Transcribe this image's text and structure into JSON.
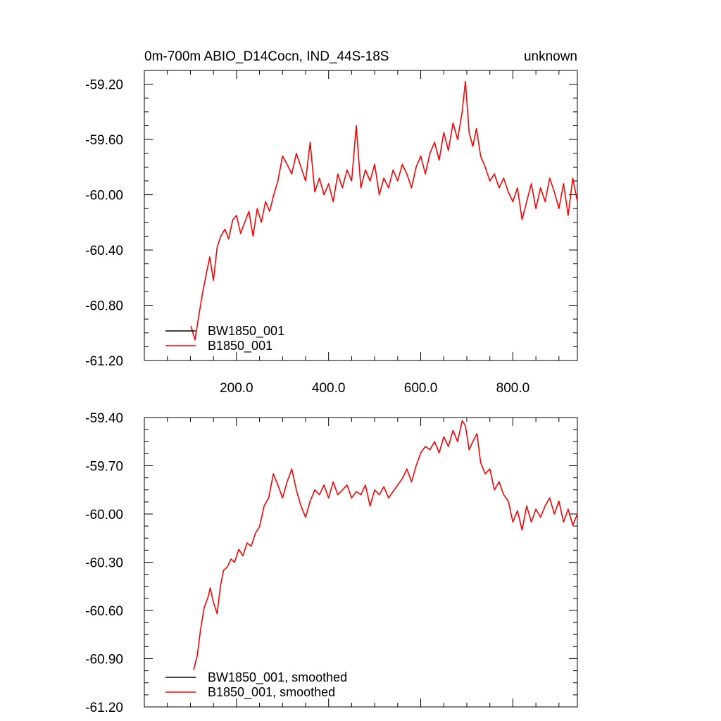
{
  "chart_data": [
    {
      "type": "line",
      "title": "0m-700m ABIO_D14Cocn, IND_44S-18S",
      "title_right": "unknown",
      "xlabel": "",
      "ylabel": "",
      "xlim": [
        0,
        940
      ],
      "ylim": [
        -61.2,
        -59.1
      ],
      "x_ticks": [
        200,
        400,
        600,
        800
      ],
      "x_tick_labels": [
        "200.0",
        "400.0",
        "600.0",
        "800.0"
      ],
      "y_ticks": [
        -59.2,
        -59.6,
        -60.0,
        -60.4,
        -60.8,
        -61.2
      ],
      "y_tick_labels": [
        "-59.20",
        "-59.60",
        "-60.00",
        "-60.40",
        "-60.80",
        "-61.20"
      ],
      "legend_position": "bottom-left",
      "grid": false,
      "series": [
        {
          "name": "BW1850_001",
          "color": "#000000",
          "x": [],
          "y": []
        },
        {
          "name": "B1850_001",
          "color": "#ff0000",
          "x": [
            101,
            110,
            118,
            126,
            134,
            142,
            150,
            158,
            166,
            175,
            183,
            192,
            200,
            209,
            218,
            227,
            236,
            245,
            254,
            263,
            272,
            281,
            290,
            300,
            310,
            320,
            330,
            340,
            350,
            360,
            370,
            380,
            390,
            400,
            410,
            420,
            430,
            440,
            450,
            460,
            470,
            480,
            490,
            500,
            510,
            520,
            530,
            540,
            550,
            560,
            570,
            580,
            590,
            600,
            610,
            620,
            630,
            640,
            650,
            660,
            670,
            680,
            690,
            697,
            705,
            713,
            721,
            730,
            740,
            750,
            760,
            770,
            780,
            790,
            800,
            810,
            820,
            830,
            840,
            850,
            860,
            870,
            880,
            890,
            900,
            910,
            920,
            930,
            940
          ],
          "y": [
            -60.95,
            -61.05,
            -60.88,
            -60.72,
            -60.58,
            -60.45,
            -60.62,
            -60.38,
            -60.3,
            -60.25,
            -60.32,
            -60.18,
            -60.15,
            -60.28,
            -60.2,
            -60.12,
            -60.3,
            -60.1,
            -60.2,
            -60.05,
            -60.12,
            -60.0,
            -59.9,
            -59.72,
            -59.78,
            -59.85,
            -59.7,
            -59.8,
            -59.9,
            -59.62,
            -59.98,
            -59.88,
            -60.0,
            -59.92,
            -60.05,
            -59.85,
            -59.95,
            -59.82,
            -59.9,
            -59.5,
            -59.95,
            -59.82,
            -59.9,
            -59.78,
            -60.0,
            -59.88,
            -59.95,
            -59.82,
            -59.9,
            -59.78,
            -59.85,
            -59.95,
            -59.8,
            -59.72,
            -59.85,
            -59.7,
            -59.62,
            -59.75,
            -59.55,
            -59.68,
            -59.48,
            -59.6,
            -59.4,
            -59.18,
            -59.55,
            -59.65,
            -59.52,
            -59.72,
            -59.8,
            -59.9,
            -59.85,
            -59.95,
            -59.88,
            -59.98,
            -60.05,
            -59.95,
            -60.18,
            -60.05,
            -59.92,
            -60.1,
            -59.95,
            -60.05,
            -59.88,
            -59.98,
            -60.1,
            -59.92,
            -60.15,
            -59.88,
            -60.05
          ]
        }
      ]
    },
    {
      "type": "line",
      "title": "",
      "xlabel": "",
      "ylabel": "",
      "xlim": [
        0,
        940
      ],
      "ylim": [
        -61.2,
        -59.4
      ],
      "x_ticks": [
        200,
        400,
        600,
        800
      ],
      "x_tick_labels": [],
      "y_ticks": [
        -59.4,
        -59.7,
        -60.0,
        -60.3,
        -60.6,
        -60.9,
        -61.2
      ],
      "y_tick_labels": [
        "-59.40",
        "-59.70",
        "-60.00",
        "-60.30",
        "-60.60",
        "-60.90",
        "-61.20"
      ],
      "legend_position": "bottom-left",
      "grid": false,
      "series": [
        {
          "name": "BW1850_001, smoothed",
          "color": "#000000",
          "x": [],
          "y": []
        },
        {
          "name": "B1850_001, smoothed",
          "color": "#ff0000",
          "x": [
            107,
            115,
            122,
            130,
            138,
            143,
            150,
            158,
            165,
            172,
            180,
            188,
            196,
            205,
            214,
            223,
            232,
            241,
            250,
            260,
            270,
            280,
            290,
            300,
            310,
            320,
            330,
            340,
            350,
            360,
            370,
            380,
            390,
            400,
            410,
            420,
            430,
            440,
            450,
            460,
            470,
            480,
            490,
            500,
            510,
            520,
            530,
            540,
            550,
            560,
            570,
            580,
            590,
            600,
            610,
            620,
            630,
            640,
            650,
            660,
            670,
            680,
            690,
            697,
            705,
            713,
            722,
            730,
            740,
            750,
            760,
            770,
            780,
            790,
            800,
            810,
            820,
            830,
            840,
            850,
            860,
            870,
            880,
            890,
            900,
            910,
            920,
            930,
            940
          ],
          "y": [
            -60.97,
            -60.88,
            -60.72,
            -60.58,
            -60.52,
            -60.46,
            -60.55,
            -60.62,
            -60.45,
            -60.35,
            -60.33,
            -60.28,
            -60.3,
            -60.22,
            -60.26,
            -60.18,
            -60.2,
            -60.12,
            -60.08,
            -59.95,
            -59.9,
            -59.75,
            -59.82,
            -59.9,
            -59.8,
            -59.72,
            -59.85,
            -59.95,
            -60.02,
            -59.92,
            -59.85,
            -59.88,
            -59.82,
            -59.9,
            -59.8,
            -59.88,
            -59.85,
            -59.82,
            -59.9,
            -59.86,
            -59.88,
            -59.82,
            -59.95,
            -59.85,
            -59.88,
            -59.83,
            -59.9,
            -59.86,
            -59.82,
            -59.78,
            -59.72,
            -59.8,
            -59.7,
            -59.62,
            -59.58,
            -59.6,
            -59.55,
            -59.62,
            -59.52,
            -59.58,
            -59.48,
            -59.55,
            -59.42,
            -59.45,
            -59.6,
            -59.55,
            -59.5,
            -59.68,
            -59.75,
            -59.72,
            -59.85,
            -59.8,
            -59.88,
            -59.92,
            -60.05,
            -59.98,
            -60.1,
            -59.95,
            -60.05,
            -59.97,
            -60.02,
            -59.95,
            -59.9,
            -60.0,
            -59.92,
            -60.05,
            -59.97,
            -60.07,
            -60.0
          ]
        }
      ]
    }
  ]
}
